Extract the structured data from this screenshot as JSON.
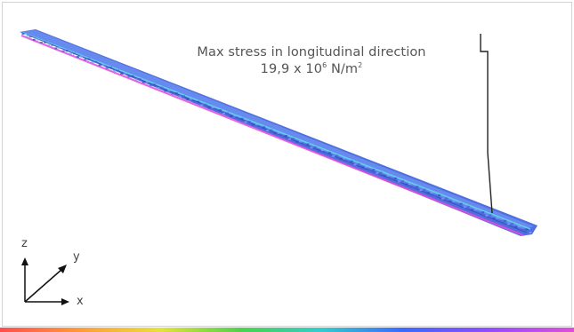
{
  "annotation": {
    "title": "Max stress in longitudinal direction",
    "value_prefix": "19,9 x 10",
    "value_exponent": "6",
    "value_unit": " N/m",
    "value_unit_exponent": "2"
  },
  "axes": {
    "z": "z",
    "y": "y",
    "x": "x"
  },
  "colors": {
    "beam_top": "#5b7de8",
    "beam_edge_pink": "#e04ddc",
    "beam_edge_cyan": "#5fd3e8",
    "leader_line": "#222222",
    "axis": "#111111",
    "text": "#555555"
  }
}
